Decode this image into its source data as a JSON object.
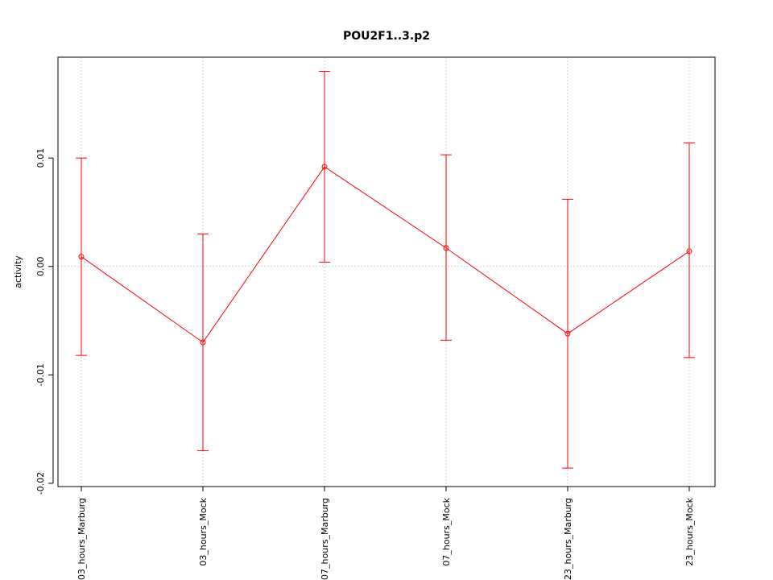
{
  "chart_data": {
    "type": "line",
    "title": "POU2F1..3.p2",
    "xlabel": "",
    "ylabel": "activity",
    "categories": [
      "03_hours_Marburg",
      "03_hours_Mock",
      "07_hours_Marburg",
      "07_hours_Mock",
      "23_hours_Marburg",
      "23_hours_Mock"
    ],
    "series": [
      {
        "values": [
          0.0009,
          -0.007,
          0.0092,
          0.0017,
          -0.0062,
          0.0014
        ],
        "lower": [
          -0.0082,
          -0.017,
          0.0004,
          -0.0068,
          -0.0186,
          -0.0084
        ],
        "upper": [
          0.01,
          0.003,
          0.018,
          0.0103,
          0.0062,
          0.0114
        ],
        "color": "#ff0000"
      }
    ],
    "yticks": [
      -0.02,
      -0.01,
      0.0,
      0.01
    ],
    "ytick_labels": [
      "-0.02",
      "-0.01",
      "0.00",
      "0.01"
    ],
    "ylim": [
      -0.0203,
      0.0193
    ],
    "grid": true,
    "reference_line": 0.0
  }
}
